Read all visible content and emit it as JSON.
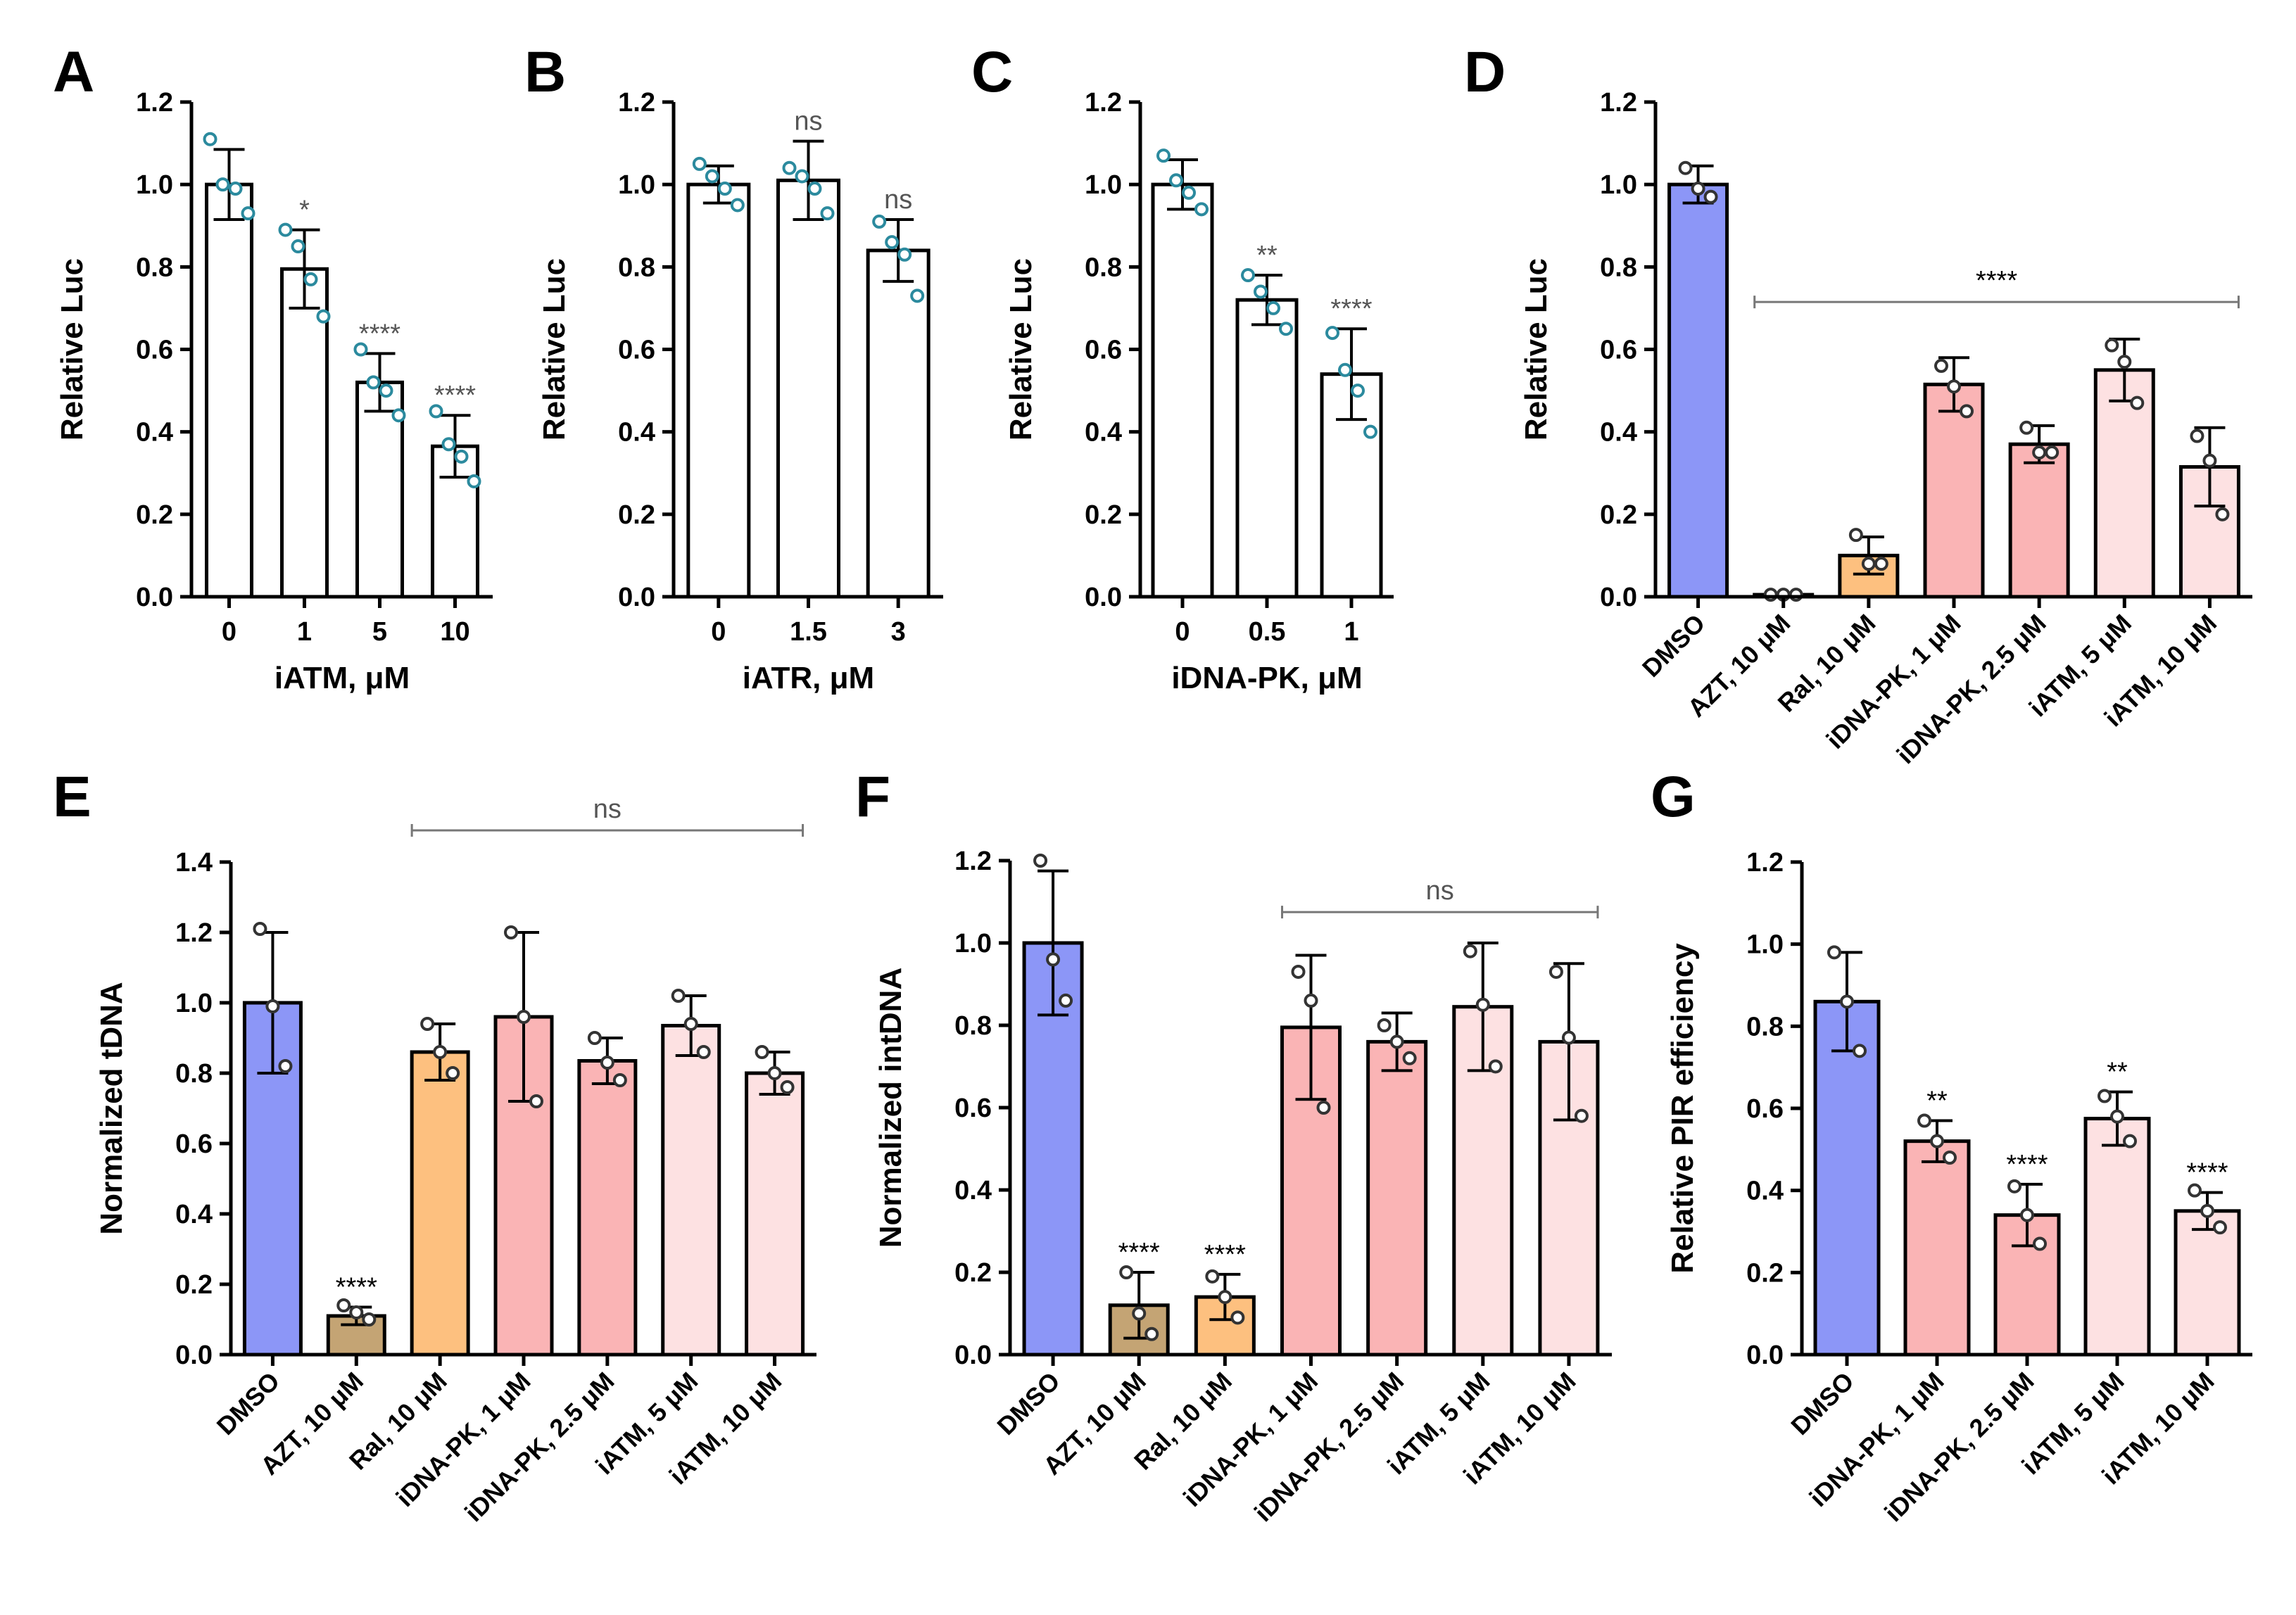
{
  "figure": {
    "colors": {
      "DMSO": "#8c96f7",
      "AZT": "#c4a474",
      "Ral": "#fdc07f",
      "iDNAPK": "#fab4b5",
      "iATM": "#fde1e2",
      "white": "#ffffff",
      "point_teal": "#2b8a9e",
      "point_black": "#333333",
      "sig_grey": "#555555",
      "sig_black": "#000000"
    }
  },
  "chart_data": [
    {
      "id": "A",
      "letter": "A",
      "type": "bar",
      "categories": [
        "0",
        "1",
        "5",
        "10"
      ],
      "values": [
        1.0,
        0.795,
        0.52,
        0.365
      ],
      "errors": [
        0.085,
        0.095,
        0.07,
        0.075
      ],
      "points": [
        [
          1.11,
          1.0,
          0.99,
          0.93
        ],
        [
          0.89,
          0.85,
          0.77,
          0.68
        ],
        [
          0.6,
          0.52,
          0.5,
          0.44
        ],
        [
          0.45,
          0.37,
          0.34,
          0.28
        ]
      ],
      "significance": [
        "",
        "*",
        "****",
        "****"
      ],
      "bar_colors": [
        "#ffffff",
        "#ffffff",
        "#ffffff",
        "#ffffff"
      ],
      "point_color": "#2b8a9e",
      "xlabel": "iATM, μM",
      "ylabel": "Relative Luc",
      "ylim": [
        0,
        1.2
      ],
      "yticks": [
        "0.0",
        "0.2",
        "0.4",
        "0.6",
        "0.8",
        "1.0",
        "1.2"
      ],
      "label_style": "horizontal"
    },
    {
      "id": "B",
      "letter": "B",
      "type": "bar",
      "categories": [
        "0",
        "1.5",
        "3"
      ],
      "values": [
        1.0,
        1.01,
        0.84
      ],
      "errors": [
        0.045,
        0.095,
        0.075
      ],
      "points": [
        [
          1.05,
          1.02,
          0.99,
          0.95
        ],
        [
          1.04,
          1.02,
          0.99,
          0.93
        ],
        [
          0.91,
          0.86,
          0.83,
          0.73
        ]
      ],
      "significance": [
        "",
        "ns",
        "ns"
      ],
      "bar_colors": [
        "#ffffff",
        "#ffffff",
        "#ffffff"
      ],
      "point_color": "#2b8a9e",
      "xlabel": "iATR, μM",
      "ylabel": "Relative Luc",
      "ylim": [
        0,
        1.2
      ],
      "yticks": [
        "0.0",
        "0.2",
        "0.4",
        "0.6",
        "0.8",
        "1.0",
        "1.2"
      ],
      "label_style": "horizontal"
    },
    {
      "id": "C",
      "letter": "C",
      "type": "bar",
      "categories": [
        "0",
        "0.5",
        "1"
      ],
      "values": [
        1.0,
        0.72,
        0.54
      ],
      "errors": [
        0.06,
        0.06,
        0.11
      ],
      "points": [
        [
          1.07,
          1.01,
          0.98,
          0.94
        ],
        [
          0.78,
          0.74,
          0.7,
          0.65
        ],
        [
          0.64,
          0.55,
          0.5,
          0.4
        ]
      ],
      "significance": [
        "",
        "**",
        "****"
      ],
      "bar_colors": [
        "#ffffff",
        "#ffffff",
        "#ffffff"
      ],
      "point_color": "#2b8a9e",
      "xlabel": "iDNA-PK, μM",
      "ylabel": "Relative Luc",
      "ylim": [
        0,
        1.2
      ],
      "yticks": [
        "0.0",
        "0.2",
        "0.4",
        "0.6",
        "0.8",
        "1.0",
        "1.2"
      ],
      "label_style": "horizontal"
    },
    {
      "id": "D",
      "letter": "D",
      "type": "bar",
      "categories": [
        "DMSO",
        "AZT, 10 μM",
        "Ral, 10 μM",
        "iDNA-PK, 1 μM",
        "iDNA-PK, 2.5 μM",
        "iATM, 5 μM",
        "iATM, 10 μM"
      ],
      "values": [
        1.0,
        0.005,
        0.1,
        0.515,
        0.37,
        0.55,
        0.315
      ],
      "errors": [
        0.045,
        0.0,
        0.045,
        0.065,
        0.045,
        0.075,
        0.095
      ],
      "points": [
        [
          1.04,
          0.99,
          0.97
        ],
        [
          0.005,
          0.005,
          0.005
        ],
        [
          0.15,
          0.08,
          0.08
        ],
        [
          0.56,
          0.51,
          0.45
        ],
        [
          0.41,
          0.35,
          0.35
        ],
        [
          0.61,
          0.57,
          0.47
        ],
        [
          0.39,
          0.33,
          0.2
        ]
      ],
      "significance": [],
      "bar_colors": [
        "#8c96f7",
        "#c4a474",
        "#fdc07f",
        "#fab4b5",
        "#fab4b5",
        "#fde1e2",
        "#fde1e2"
      ],
      "point_color": "#333333",
      "bracket": {
        "from": 1,
        "to": 6,
        "value": 0.715,
        "label": "****"
      },
      "xlabel": "",
      "ylabel": "Relative Luc",
      "ylim": [
        0,
        1.2
      ],
      "yticks": [
        "0.0",
        "0.2",
        "0.4",
        "0.6",
        "0.8",
        "1.0",
        "1.2"
      ],
      "label_style": "rotated"
    },
    {
      "id": "E",
      "letter": "E",
      "type": "bar",
      "categories": [
        "DMSO",
        "AZT, 10 μM",
        "Ral, 10 μM",
        "iDNA-PK, 1 μM",
        "iDNA-PK, 2.5 μM",
        "iATM, 5 μM",
        "iATM, 10 μM"
      ],
      "values": [
        1.0,
        0.11,
        0.86,
        0.96,
        0.835,
        0.935,
        0.8
      ],
      "errors": [
        0.2,
        0.025,
        0.08,
        0.24,
        0.065,
        0.085,
        0.06
      ],
      "points": [
        [
          1.21,
          0.99,
          0.82
        ],
        [
          0.14,
          0.12,
          0.1
        ],
        [
          0.94,
          0.86,
          0.8
        ],
        [
          1.2,
          0.96,
          0.72
        ],
        [
          0.9,
          0.83,
          0.78
        ],
        [
          1.02,
          0.94,
          0.86
        ],
        [
          0.86,
          0.8,
          0.76
        ]
      ],
      "significance": [
        "",
        "****",
        "",
        "",
        "",
        "",
        ""
      ],
      "bar_colors": [
        "#8c96f7",
        "#c4a474",
        "#fdc07f",
        "#fab4b5",
        "#fab4b5",
        "#fde1e2",
        "#fde1e2"
      ],
      "point_color": "#333333",
      "bracket": {
        "from": 2,
        "to": 6,
        "value": 1.49,
        "label": "ns"
      },
      "xlabel": "",
      "ylabel": "Normalized tDNA",
      "ylim": [
        0,
        1.4
      ],
      "yticks": [
        "0.0",
        "0.2",
        "0.4",
        "0.6",
        "0.8",
        "1.0",
        "1.2",
        "1.4"
      ],
      "label_style": "rotated"
    },
    {
      "id": "F",
      "letter": "F",
      "type": "bar",
      "categories": [
        "DMSO",
        "AZT, 10 μM",
        "Ral, 10 μM",
        "iDNA-PK, 1 μM",
        "iDNA-PK, 2.5 μM",
        "iATM, 5 μM",
        "iATM, 10 μM"
      ],
      "values": [
        1.0,
        0.12,
        0.14,
        0.795,
        0.76,
        0.845,
        0.76
      ],
      "errors": [
        0.175,
        0.08,
        0.055,
        0.175,
        0.07,
        0.155,
        0.19
      ],
      "points": [
        [
          1.2,
          0.96,
          0.86
        ],
        [
          0.2,
          0.1,
          0.05
        ],
        [
          0.19,
          0.14,
          0.09
        ],
        [
          0.93,
          0.86,
          0.6
        ],
        [
          0.8,
          0.76,
          0.72
        ],
        [
          0.98,
          0.85,
          0.7
        ],
        [
          0.93,
          0.77,
          0.58
        ]
      ],
      "significance": [
        "",
        "****",
        "****",
        "",
        "",
        "",
        ""
      ],
      "bar_colors": [
        "#8c96f7",
        "#c4a474",
        "#fdc07f",
        "#fab4b5",
        "#fab4b5",
        "#fde1e2",
        "#fde1e2"
      ],
      "point_color": "#333333",
      "bracket": {
        "from": 3,
        "to": 6,
        "value": 1.075,
        "label": "ns"
      },
      "xlabel": "",
      "ylabel": "Normalized intDNA",
      "ylim": [
        0,
        1.2
      ],
      "yticks": [
        "0.0",
        "0.2",
        "0.4",
        "0.6",
        "0.8",
        "1.0",
        "1.2"
      ],
      "label_style": "rotated"
    },
    {
      "id": "G",
      "letter": "G",
      "type": "bar",
      "categories": [
        "DMSO",
        "iDNA-PK, 1 μM",
        "iDNA-PK, 2.5 μM",
        "iATM, 5 μM",
        "iATM, 10 μM"
      ],
      "values": [
        0.86,
        0.52,
        0.34,
        0.575,
        0.35
      ],
      "errors": [
        0.12,
        0.05,
        0.075,
        0.065,
        0.045
      ],
      "points": [
        [
          0.98,
          0.86,
          0.74
        ],
        [
          0.57,
          0.52,
          0.48
        ],
        [
          0.41,
          0.34,
          0.27
        ],
        [
          0.63,
          0.58,
          0.52
        ],
        [
          0.4,
          0.35,
          0.31
        ]
      ],
      "significance": [
        "",
        "**",
        "****",
        "**",
        "****"
      ],
      "bar_colors": [
        "#8c96f7",
        "#fab4b5",
        "#fab4b5",
        "#fde1e2",
        "#fde1e2"
      ],
      "point_color": "#333333",
      "xlabel": "",
      "ylabel": "Relative PIR efficiency",
      "ylim": [
        0,
        1.2
      ],
      "yticks": [
        "0.0",
        "0.2",
        "0.4",
        "0.6",
        "0.8",
        "1.0",
        "1.2"
      ],
      "label_style": "rotated"
    }
  ]
}
